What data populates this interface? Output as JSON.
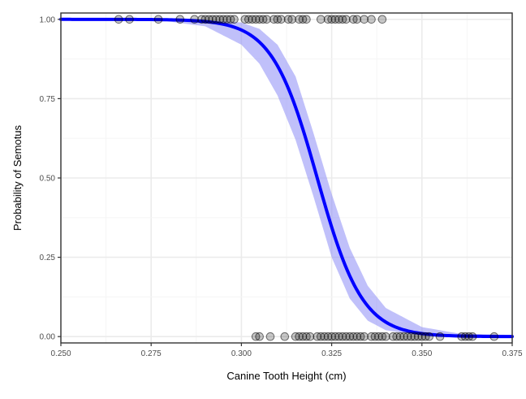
{
  "chart_data": {
    "type": "scatter",
    "xlabel": "Canine Tooth Height (cm)",
    "ylabel": "Probability of Semotus",
    "xlim": [
      0.25,
      0.375
    ],
    "ylim": [
      0,
      1
    ],
    "x_ticks": [
      {
        "value": 0.25,
        "label": "0.250"
      },
      {
        "value": 0.275,
        "label": "0.275"
      },
      {
        "value": 0.3,
        "label": "0.300"
      },
      {
        "value": 0.325,
        "label": "0.325"
      },
      {
        "value": 0.35,
        "label": "0.350"
      },
      {
        "value": 0.375,
        "label": "0.375"
      }
    ],
    "y_ticks": [
      {
        "value": 0,
        "label": "0.00"
      },
      {
        "value": 0.25,
        "label": "0.25"
      },
      {
        "value": 0.5,
        "label": "0.50"
      },
      {
        "value": 0.75,
        "label": "0.75"
      },
      {
        "value": 1,
        "label": "1.00"
      }
    ],
    "grid": true,
    "colors": {
      "points": "#000000",
      "fit_line": "#0000ff",
      "ci_band": "#8c8cf5",
      "grid": "#ebebeb",
      "panel_border": "#333333"
    },
    "series": [
      {
        "kind": "points",
        "y": 1,
        "x": [
          0.266,
          0.269,
          0.277,
          0.283,
          0.287,
          0.289,
          0.29,
          0.291,
          0.292,
          0.293,
          0.294,
          0.295,
          0.296,
          0.297,
          0.298,
          0.301,
          0.302,
          0.303,
          0.304,
          0.305,
          0.306,
          0.307,
          0.309,
          0.31,
          0.311,
          0.313,
          0.314,
          0.316,
          0.317,
          0.318,
          0.322,
          0.324,
          0.325,
          0.326,
          0.327,
          0.328,
          0.329,
          0.331,
          0.332,
          0.334,
          0.336,
          0.339
        ]
      },
      {
        "kind": "points",
        "y": 0,
        "x": [
          0.304,
          0.305,
          0.308,
          0.312,
          0.315,
          0.316,
          0.317,
          0.318,
          0.319,
          0.321,
          0.322,
          0.323,
          0.324,
          0.325,
          0.326,
          0.327,
          0.328,
          0.329,
          0.33,
          0.331,
          0.332,
          0.333,
          0.334,
          0.336,
          0.337,
          0.338,
          0.339,
          0.34,
          0.342,
          0.343,
          0.344,
          0.345,
          0.346,
          0.347,
          0.348,
          0.349,
          0.35,
          0.351,
          0.352,
          0.355,
          0.361,
          0.362,
          0.363,
          0.364,
          0.37
        ]
      },
      {
        "kind": "logistic-fit",
        "midpoint": 0.321,
        "slope": -160,
        "x": [
          0.25,
          0.26,
          0.27,
          0.28,
          0.29,
          0.3,
          0.305,
          0.31,
          0.315,
          0.32,
          0.325,
          0.33,
          0.335,
          0.34,
          0.35,
          0.36,
          0.375
        ],
        "y": [
          1.0,
          1.0,
          1.0,
          0.999,
          0.993,
          0.966,
          0.928,
          0.853,
          0.724,
          0.54,
          0.345,
          0.192,
          0.095,
          0.046,
          0.01,
          0.002,
          0.0
        ],
        "ci_low": [
          1.0,
          0.999,
          0.998,
          0.993,
          0.978,
          0.92,
          0.86,
          0.76,
          0.62,
          0.44,
          0.25,
          0.12,
          0.05,
          0.02,
          0.003,
          0.0,
          0.0
        ],
        "ci_high": [
          1.0,
          1.0,
          1.0,
          1.0,
          0.998,
          0.99,
          0.97,
          0.92,
          0.82,
          0.64,
          0.45,
          0.28,
          0.16,
          0.09,
          0.03,
          0.01,
          0.005
        ]
      }
    ]
  }
}
